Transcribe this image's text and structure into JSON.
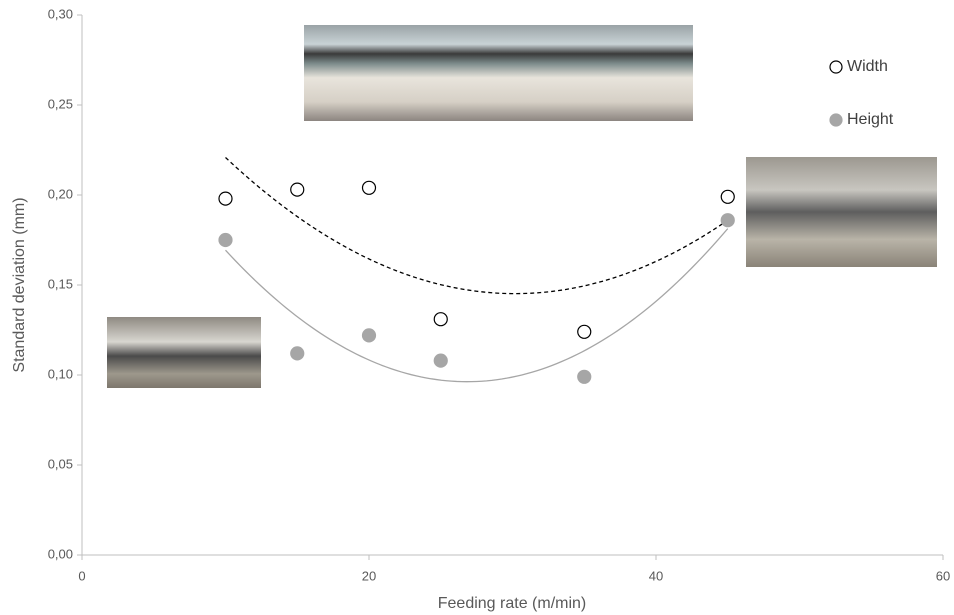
{
  "chart_data": {
    "type": "scatter",
    "x_label": "Feeding rate (m/min)",
    "y_label": "Standard deviation  (mm)",
    "xlim": [
      0,
      60
    ],
    "xticks": [
      0,
      20,
      40,
      60
    ],
    "ylim": [
      0,
      0.3
    ],
    "yticks": [
      {
        "value": 0,
        "label": "0,00"
      },
      {
        "value": 0.05,
        "label": "0,05"
      },
      {
        "value": 0.1,
        "label": "0,10"
      },
      {
        "value": 0.15,
        "label": "0,15"
      },
      {
        "value": 0.2,
        "label": "0,20"
      },
      {
        "value": 0.25,
        "label": "0,25"
      },
      {
        "value": 0.3,
        "label": "0,30"
      }
    ],
    "legend": "top-right",
    "series": [
      {
        "name": "Width",
        "color": "#000000",
        "filled": false,
        "trend_order": 2,
        "trend_style": "dashed",
        "x": [
          10,
          15,
          20,
          25,
          35,
          45
        ],
        "values": [
          0.198,
          0.203,
          0.204,
          0.131,
          0.124,
          0.199
        ]
      },
      {
        "name": "Height",
        "color": "#a6a6a6",
        "filled": true,
        "trend_order": 2,
        "trend_style": "solid",
        "x": [
          10,
          15,
          20,
          25,
          35,
          45
        ],
        "values": [
          0.175,
          0.112,
          0.122,
          0.108,
          0.099,
          0.186
        ]
      }
    ]
  }
}
